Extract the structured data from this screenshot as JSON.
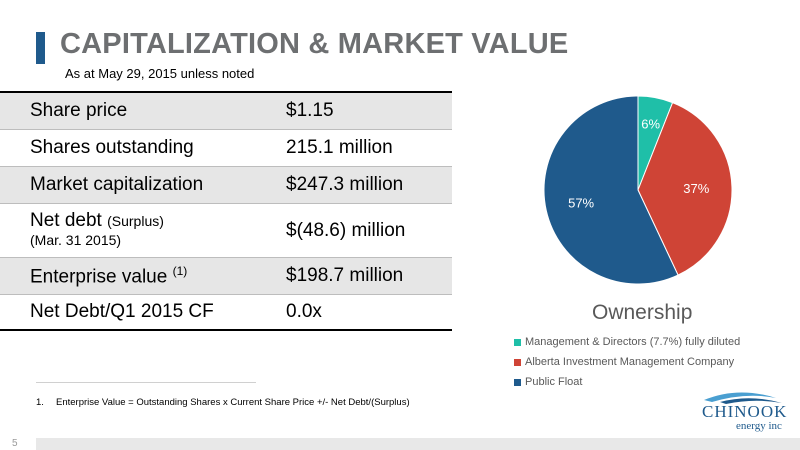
{
  "slide": {
    "title": "CAPITALIZATION & MARKET VALUE",
    "subtitle": "As at May 29, 2015 unless noted",
    "page_number": "5"
  },
  "table": {
    "rows": [
      {
        "label": "Share price",
        "value": "$1.15"
      },
      {
        "label": "Shares outstanding",
        "value": "215.1 million"
      },
      {
        "label": "Market capitalization",
        "value": "$247.3 million"
      },
      {
        "label": "Net debt",
        "label_suffix": "(Surplus)",
        "label_line2": "(Mar. 31 2015)",
        "value": "$(48.6) million"
      },
      {
        "label": "Enterprise value",
        "label_sup": "(1)",
        "value": "$198.7 million"
      },
      {
        "label": "Net Debt/Q1 2015 CF",
        "value": "0.0x"
      }
    ]
  },
  "footnote": {
    "number": "1.",
    "text": "Enterprise Value = Outstanding Shares x Current Share Price +/- Net Debt/(Surplus)"
  },
  "chart_data": {
    "type": "pie",
    "title": "Ownership",
    "categories": [
      "Management & Directors (7.7%) fully diluted",
      "Alberta Investment Management Company",
      "Public Float"
    ],
    "values": [
      6,
      37,
      57
    ],
    "labels": [
      "6%",
      "37%",
      "57%"
    ],
    "colors": [
      "#1fbfa8",
      "#cf4436",
      "#1f5a8c"
    ],
    "legend_position": "bottom"
  },
  "logo": {
    "name": "CHINOOK",
    "sub": "energy inc"
  },
  "colors": {
    "accent": "#1f5a8c",
    "title_gray": "#6d6f71",
    "row_shade": "#e6e6e6"
  }
}
